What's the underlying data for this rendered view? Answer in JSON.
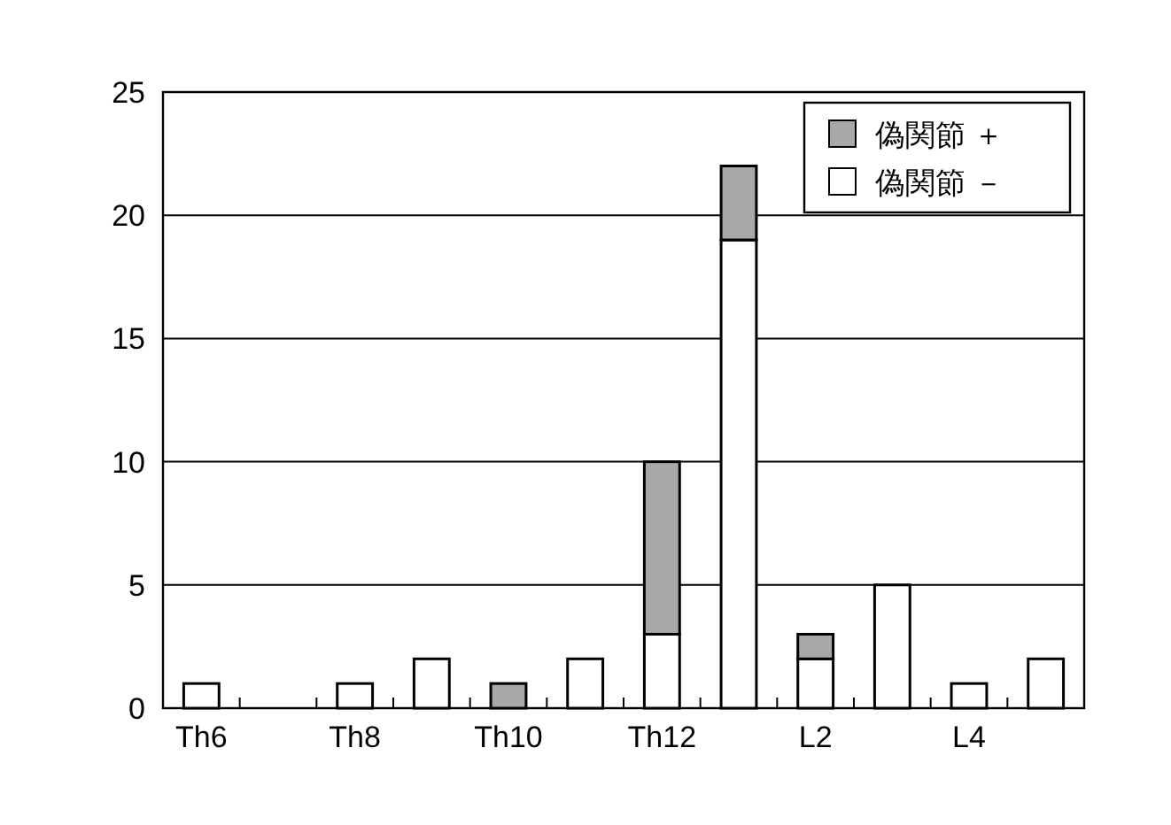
{
  "chart_data": {
    "type": "bar",
    "stacked": true,
    "categories": [
      "Th6",
      null,
      "Th8",
      null,
      "Th10",
      null,
      "Th12",
      null,
      "L2",
      null,
      "L4",
      null
    ],
    "series": [
      {
        "name": "偽関節 －",
        "color": "#ffffff",
        "values": [
          1,
          0,
          1,
          2,
          0,
          2,
          3,
          19,
          2,
          5,
          1,
          2
        ]
      },
      {
        "name": "偽関節 ＋",
        "color": "#a8a8a8",
        "values": [
          0,
          0,
          0,
          0,
          1,
          0,
          7,
          3,
          1,
          0,
          0,
          0
        ]
      }
    ],
    "ylim": [
      0,
      25
    ],
    "yticks": [
      0,
      5,
      10,
      15,
      20,
      25
    ],
    "grid": "y",
    "legend": "top right"
  }
}
